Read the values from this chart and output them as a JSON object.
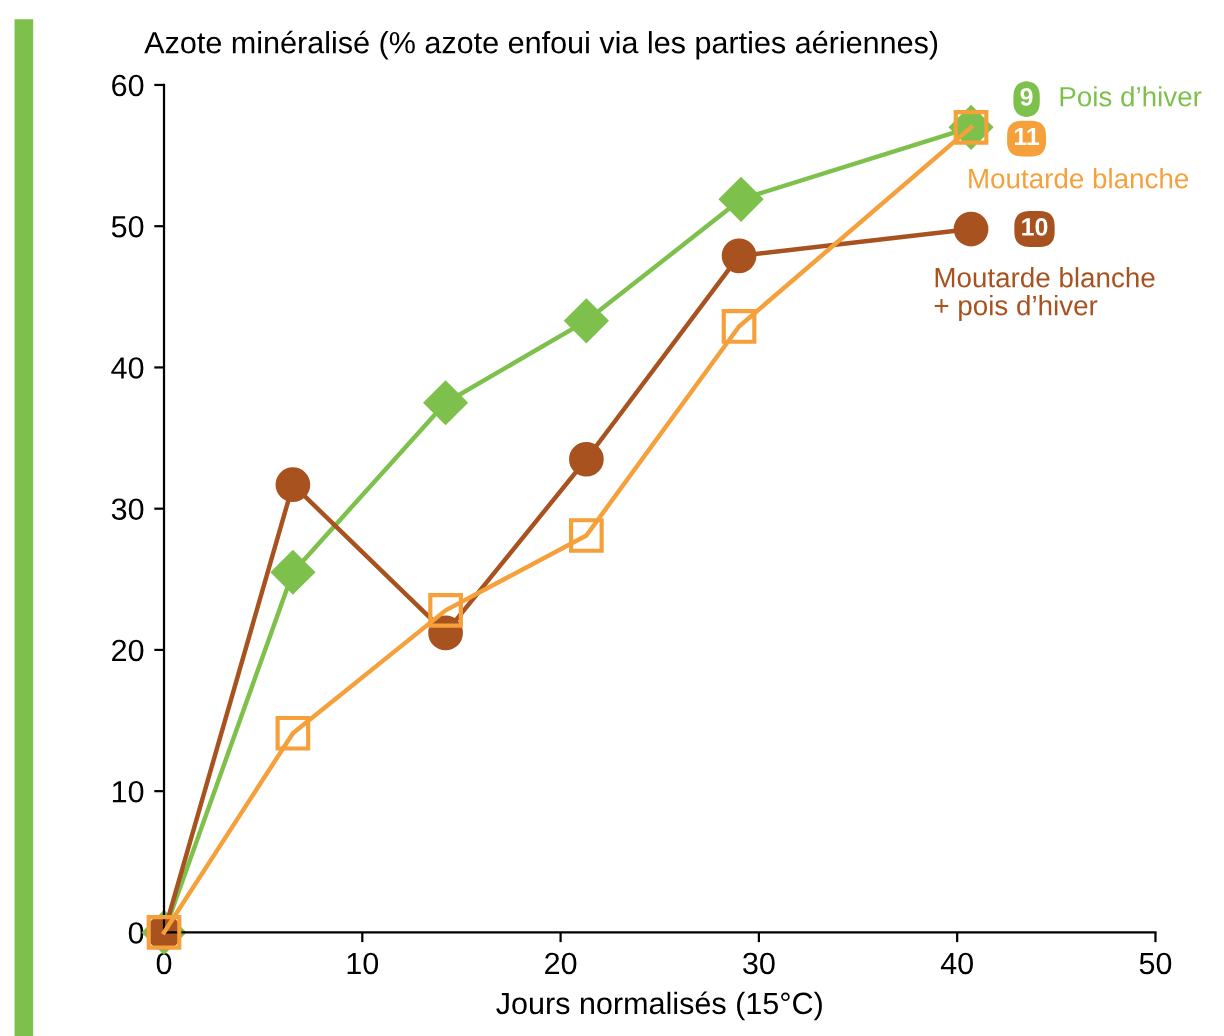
{
  "chart_data": {
    "type": "line",
    "ylabel": "Azote minéralisé (% azote enfoui via les parties aériennes)",
    "xlabel": "Jours normalisés (15°C)",
    "xlim": [
      0,
      50
    ],
    "xticks": [
      0,
      10,
      20,
      30,
      40,
      50
    ],
    "ylim": [
      0,
      60
    ],
    "yticks": [
      0,
      10,
      20,
      30,
      40,
      50,
      60
    ],
    "grid": false,
    "legend": "top right",
    "series": [
      {
        "name": "Pois d’hiver",
        "color": "#7dc04b",
        "marker": "diamond",
        "x": [
          0,
          6.5,
          14.2,
          21.3,
          29.1,
          40.7
        ],
        "values": [
          0,
          25.5,
          37.5,
          43.3,
          51.9,
          57.0
        ]
      },
      {
        "name": "Moutarde blanche + pois d’hiver",
        "color": "#a8521f",
        "marker": "circle",
        "x": [
          0,
          6.5,
          14.2,
          21.3,
          29.0,
          40.7
        ],
        "values": [
          0,
          31.7,
          21.2,
          33.5,
          47.9,
          49.8
        ]
      },
      {
        "name": "Moutarde blanche",
        "color": "#f5a03a",
        "marker": "square",
        "x": [
          0,
          6.5,
          14.2,
          21.3,
          29.0,
          40.7
        ],
        "values": [
          0,
          14.1,
          22.8,
          28.1,
          42.9,
          57.0
        ]
      }
    ],
    "annotations": [
      "9",
      "10",
      "11"
    ]
  }
}
